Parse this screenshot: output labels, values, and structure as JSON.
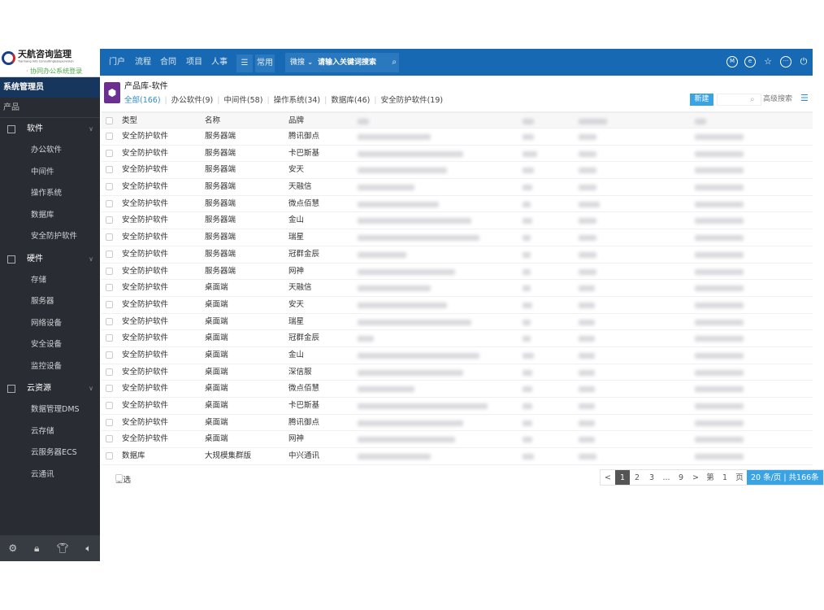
{
  "logo": {
    "name": "天航咨询监理",
    "subtitle": "Tianhang Info Consulting&Supervision",
    "tagline": "· 协同办公系统登录"
  },
  "topbar": {
    "nav": [
      "门户",
      "流程",
      "合同",
      "项目",
      "人事"
    ],
    "menu_icon": "hamburger-icon",
    "common": "常用",
    "search_scope": "微搜",
    "search_placeholder": "请输入关键词搜索",
    "icons": [
      "m-badge-icon",
      "r-badge-icon",
      "star-icon",
      "more-icon",
      "power-icon"
    ]
  },
  "sidebar": {
    "user": "系统管理员",
    "section": "产品",
    "groups": [
      {
        "label": "软件",
        "items": [
          "办公软件",
          "中间件",
          "操作系统",
          "数据库",
          "安全防护软件"
        ]
      },
      {
        "label": "硬件",
        "items": [
          "存储",
          "服务器",
          "网络设备",
          "安全设备",
          "监控设备"
        ]
      },
      {
        "label": "云资源",
        "items": [
          "数据管理DMS",
          "云存储",
          "云服务器ECS",
          "云通讯"
        ]
      }
    ],
    "footer_icons": [
      "settings-icon",
      "lock-icon",
      "shirt-icon",
      "speaker-icon"
    ]
  },
  "main": {
    "title": "产品库-软件",
    "tabs": [
      {
        "label": "全部(166)",
        "active": true
      },
      {
        "label": "办公软件(9)"
      },
      {
        "label": "中间件(58)"
      },
      {
        "label": "操作系统(34)"
      },
      {
        "label": "数据库(46)"
      },
      {
        "label": "安全防护软件(19)"
      }
    ],
    "new_button": "新建",
    "search_value": "",
    "advanced_search": "高级搜索",
    "columns": [
      "类型",
      "名称",
      "品牌"
    ],
    "rows": [
      [
        "安全防护软件",
        "服务器端",
        "腾讯御点"
      ],
      [
        "安全防护软件",
        "服务器端",
        "卡巴斯基"
      ],
      [
        "安全防护软件",
        "服务器端",
        "安天"
      ],
      [
        "安全防护软件",
        "服务器端",
        "天融信"
      ],
      [
        "安全防护软件",
        "服务器端",
        "微点佰慧"
      ],
      [
        "安全防护软件",
        "服务器端",
        "金山"
      ],
      [
        "安全防护软件",
        "服务器端",
        "瑞星"
      ],
      [
        "安全防护软件",
        "服务器端",
        "冠群金辰"
      ],
      [
        "安全防护软件",
        "服务器端",
        "网神"
      ],
      [
        "安全防护软件",
        "桌面端",
        "天融信"
      ],
      [
        "安全防护软件",
        "桌面端",
        "安天"
      ],
      [
        "安全防护软件",
        "桌面端",
        "瑞星"
      ],
      [
        "安全防护软件",
        "桌面端",
        "冠群金辰"
      ],
      [
        "安全防护软件",
        "桌面端",
        "金山"
      ],
      [
        "安全防护软件",
        "桌面端",
        "深信服"
      ],
      [
        "安全防护软件",
        "桌面端",
        "微点佰慧"
      ],
      [
        "安全防护软件",
        "桌面端",
        "卡巴斯基"
      ],
      [
        "安全防护软件",
        "桌面端",
        "腾讯御点"
      ],
      [
        "安全防护软件",
        "桌面端",
        "网神"
      ],
      [
        "数据库",
        "大规模集群版",
        "中兴通讯"
      ]
    ],
    "select_all": "全选",
    "pager": {
      "prev": "<",
      "pages": [
        "1",
        "2",
        "3",
        "...",
        "9"
      ],
      "current": "1",
      "next": ">",
      "goto_prefix": "第",
      "goto_page": "1",
      "goto_suffix": "页",
      "per_page": "20 条/页 | 共166条"
    }
  },
  "colors": {
    "topbar": "#1769b3",
    "sidebar": "#292c33",
    "accent": "#3aa3e3",
    "user_bar": "#17365e"
  }
}
